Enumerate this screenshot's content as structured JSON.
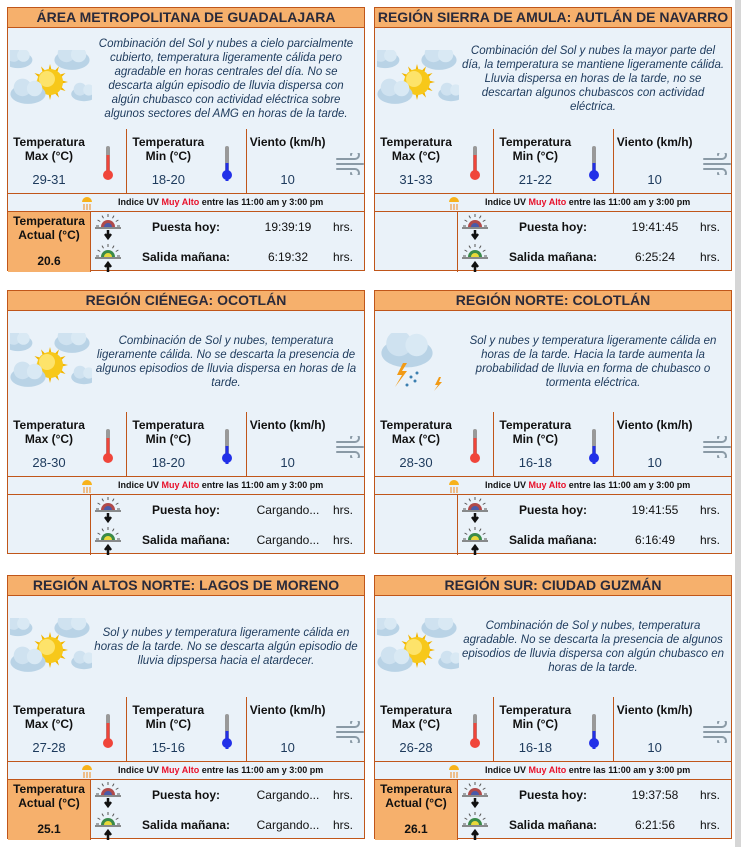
{
  "common": {
    "max_label": "Temperatura Max (°C)",
    "min_label": "Temperatura Min (°C)",
    "wind_label": "Viento (km/h)",
    "actual_label": "Temperatura Actual (°C)",
    "uv_prefix": "Indice UV",
    "uv_level": "Muy Alto",
    "uv_suffix": "entre las 11:00 am y 3:00 pm",
    "sunset_label": "Puesta hoy:",
    "sunrise_label": "Salida mañana:",
    "hrs": "hrs."
  },
  "colors": {
    "header": "#f6b06c",
    "border": "#c0561a",
    "panel": "#eaf2f9",
    "uv_level": "#e8102a"
  },
  "regions": [
    {
      "title": "ÁREA METROPOLITANA DE GUADALAJARA",
      "icon": "sun-clouds-icon",
      "description": "Combinación del Sol y nubes a cielo parcialmente cubierto, temperatura ligeramente cálida pero agradable en horas centrales del día. No se descarta algún episodio de lluvia dispersa con algún chubasco con actividad eléctrica sobre algunos sectores del AMG en horas de la tarde.",
      "max": "29-31",
      "min": "18-20",
      "wind": "10",
      "actual": "20.6",
      "sunset": "19:39:19",
      "sunrise": "6:19:32"
    },
    {
      "title": "REGIÓN SIERRA DE AMULA: AUTLÁN DE NAVARRO",
      "icon": "sun-clouds-icon",
      "description": "Combinación del Sol y nubes la mayor parte del día, la temperatura se mantiene ligeramente cálida. Lluvia dispersa en horas de la tarde, no se descartan algunos chubascos con actividad eléctrica.",
      "max": "31-33",
      "min": "21-22",
      "wind": "10",
      "actual": null,
      "sunset": "19:41:45",
      "sunrise": "6:25:24"
    },
    {
      "title": "REGIÓN CIÉNEGA: OCOTLÁN",
      "icon": "sun-clouds-icon",
      "description": "Combinación de Sol y nubes, temperatura ligeramente cálida. No se descarta la presencia de algunos episodios de lluvia dispersa en horas de la tarde.",
      "max": "28-30",
      "min": "18-20",
      "wind": "10",
      "actual": null,
      "sunset": "Cargando...",
      "sunrise": "Cargando..."
    },
    {
      "title": "REGIÓN NORTE: COLOTLÁN",
      "icon": "storm-icon",
      "description": "Sol y nubes y temperatura ligeramente cálida en horas de la tarde. Hacia la tarde aumenta la probabilidad de lluvia en forma de chubasco o tormenta eléctrica.",
      "max": "28-30",
      "min": "16-18",
      "wind": "10",
      "actual": null,
      "sunset": "19:41:55",
      "sunrise": "6:16:49"
    },
    {
      "title": "REGIÓN ALTOS NORTE: LAGOS DE MORENO",
      "icon": "sun-clouds-icon",
      "description": "Sol y nubes y temperatura ligeramente cálida en horas de la tarde. No se descarta algún episodio de lluvia dipspersa hacia el atardecer.",
      "max": "27-28",
      "min": "15-16",
      "wind": "10",
      "actual": "25.1",
      "sunset": "Cargando...",
      "sunrise": "Cargando..."
    },
    {
      "title": "REGIÓN SUR: CIUDAD GUZMÁN",
      "icon": "sun-clouds-icon",
      "description": "Combinación de Sol y nubes, temperatura agradable. No se descarta la presencia de algunos episodios de lluvia dispersa con algún chubasco en horas de la tarde.",
      "max": "26-28",
      "min": "16-18",
      "wind": "10",
      "actual": "26.1",
      "sunset": "19:37:58",
      "sunrise": "6:21:56"
    }
  ]
}
